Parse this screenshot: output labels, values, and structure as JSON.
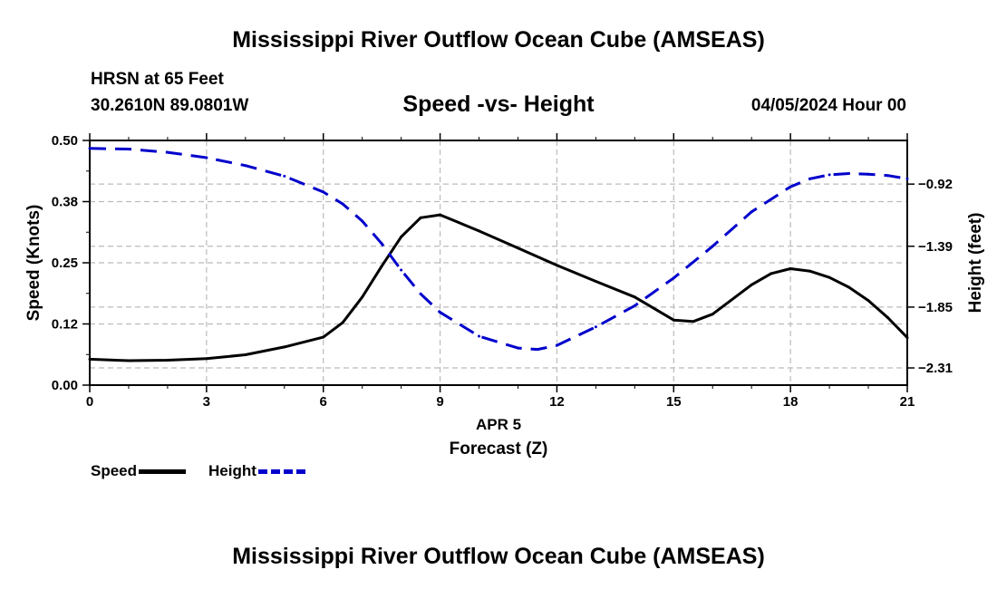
{
  "header": {
    "main_title": "Mississippi River Outflow Ocean Cube (AMSEAS)",
    "station": "HRSN at 65 Feet",
    "coords": "30.2610N  89.0801W",
    "chart_title": "Speed -vs- Height",
    "datetime": "04/05/2024 Hour 00"
  },
  "footer": {
    "repeat_title": "Mississippi River Outflow Ocean Cube (AMSEAS)"
  },
  "legend": {
    "speed_label": "Speed",
    "height_label": "Height"
  },
  "colors": {
    "speed": "#000000",
    "height": "#0000cc",
    "grid": "#bbbbbb"
  },
  "chart_data": {
    "type": "line",
    "title": "Speed -vs- Height",
    "xlabel_date": "APR 5",
    "xlabel": "Forecast (Z)",
    "ylabel_left": "Speed (Knots)",
    "ylabel_right": "Height (feet)",
    "xlim": [
      0,
      21
    ],
    "ylim_left": [
      0,
      0.5
    ],
    "ylim_right": [
      -2.44,
      -0.59
    ],
    "x_ticks": [
      0,
      3,
      6,
      9,
      12,
      15,
      18,
      21
    ],
    "x_tick_labels": [
      "0",
      "3",
      "6",
      "9",
      "12",
      "15",
      "18",
      "21"
    ],
    "left_ticks": [
      0,
      0.125,
      0.25,
      0.375,
      0.5
    ],
    "left_tick_labels": [
      "0.00",
      "0.12",
      "0.25",
      "0.38",
      "0.50"
    ],
    "right_ticks": [
      -2.31,
      -1.85,
      -1.39,
      -0.92
    ],
    "right_tick_labels": [
      "−2.31",
      "−1.85",
      "−1.39",
      "−0.92"
    ],
    "series": [
      {
        "name": "Speed",
        "axis": "left",
        "style": "solid",
        "x": [
          0,
          1,
          2,
          3,
          4,
          5,
          6,
          6.5,
          7,
          7.5,
          8,
          8.5,
          9,
          10,
          11,
          12,
          13,
          14,
          15,
          15.5,
          16,
          17,
          17.5,
          18,
          18.5,
          19,
          19.5,
          20,
          20.5,
          21
        ],
        "values": [
          0.053,
          0.05,
          0.051,
          0.054,
          0.062,
          0.078,
          0.098,
          0.128,
          0.18,
          0.243,
          0.303,
          0.342,
          0.348,
          0.315,
          0.28,
          0.245,
          0.212,
          0.18,
          0.133,
          0.13,
          0.145,
          0.205,
          0.228,
          0.238,
          0.233,
          0.22,
          0.2,
          0.173,
          0.138,
          0.097
        ]
      },
      {
        "name": "Height",
        "axis": "right",
        "style": "dashed",
        "x": [
          0,
          1,
          2,
          3,
          4,
          5,
          6,
          6.5,
          7,
          7.5,
          8,
          8.5,
          9,
          10,
          11,
          11.5,
          12,
          13,
          14,
          15,
          16,
          17,
          18,
          18.5,
          19,
          19.5,
          20,
          20.5,
          21
        ],
        "values": [
          -0.65,
          -0.655,
          -0.68,
          -0.72,
          -0.78,
          -0.86,
          -0.98,
          -1.07,
          -1.2,
          -1.37,
          -1.57,
          -1.75,
          -1.89,
          -2.07,
          -2.16,
          -2.17,
          -2.14,
          -2.0,
          -1.84,
          -1.63,
          -1.39,
          -1.13,
          -0.94,
          -0.88,
          -0.85,
          -0.84,
          -0.845,
          -0.855,
          -0.88
        ]
      }
    ]
  }
}
